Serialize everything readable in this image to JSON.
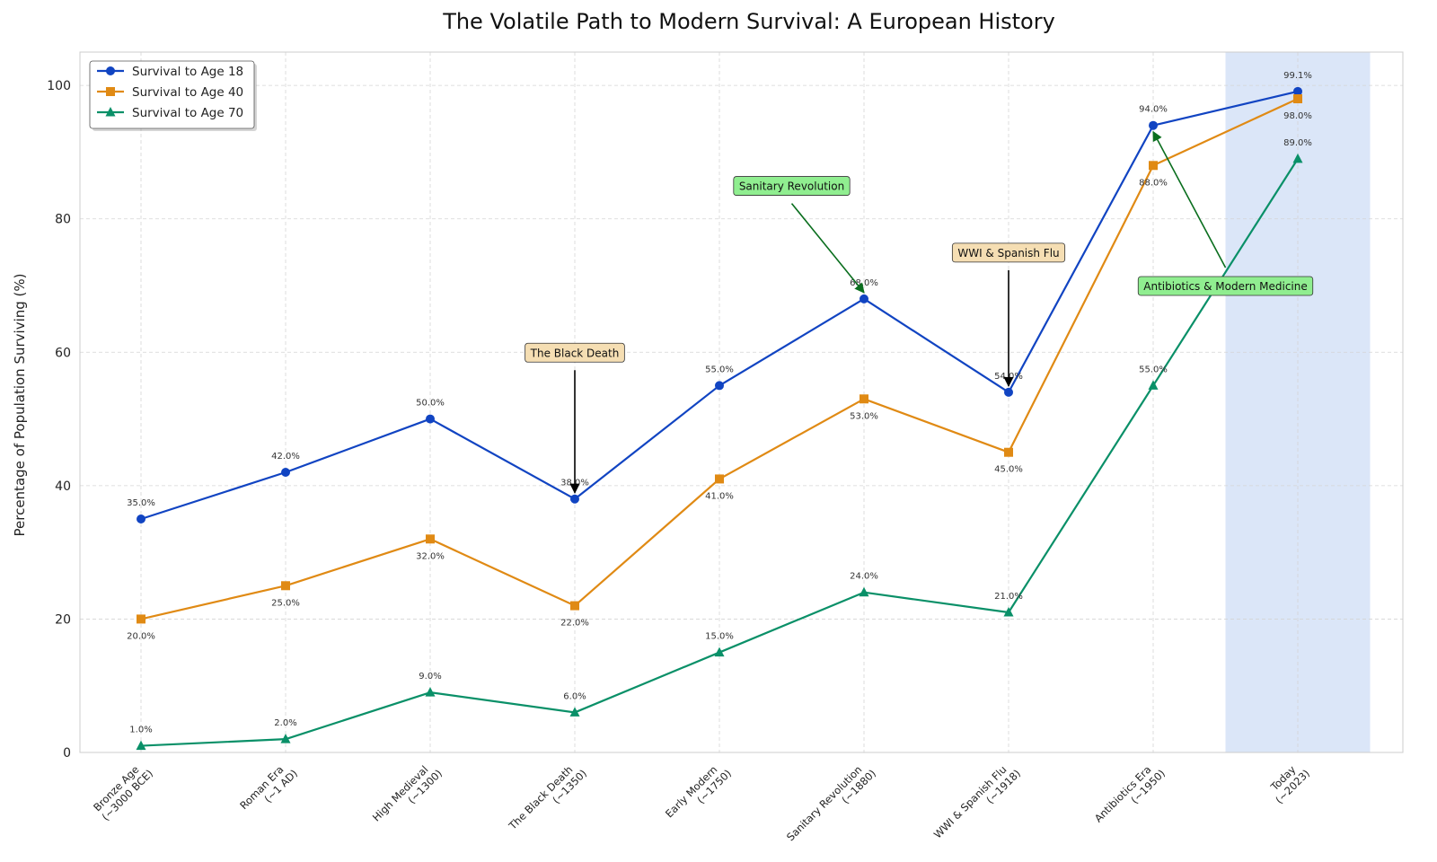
{
  "chart_data": {
    "type": "line",
    "title": "The Volatile Path to Modern Survival: A European History",
    "xlabel": "",
    "ylabel": "Percentage of Population Surviving (%)",
    "ylim": [
      0,
      105
    ],
    "yticks": [
      0,
      20,
      40,
      60,
      80,
      100
    ],
    "grid": true,
    "legend_position": "top-left",
    "categories": [
      [
        "Bronze Age",
        "(~3000 BCE)"
      ],
      [
        "Roman Era",
        "(~1 AD)"
      ],
      [
        "High Medieval",
        "(~1300)"
      ],
      [
        "The Black Death",
        "(~1350)"
      ],
      [
        "Early Modern",
        "(~1750)"
      ],
      [
        "Sanitary Revolution",
        "(~1880)"
      ],
      [
        "WWI & Spanish Flu",
        "(~1918)"
      ],
      [
        "Antibiotics Era",
        "(~1950)"
      ],
      [
        "Today",
        "(~2023)"
      ]
    ],
    "series": [
      {
        "name": "Survival to Age 18",
        "color": "#1144c2",
        "marker": "circle",
        "label_position": "above",
        "values": [
          35,
          42,
          50,
          38,
          55,
          68,
          54,
          94,
          99.1
        ],
        "labels": [
          "35.0%",
          "42.0%",
          "50.0%",
          "38.0%",
          "55.0%",
          "68.0%",
          "54.0%",
          "94.0%",
          "99.1%"
        ]
      },
      {
        "name": "Survival to Age 40",
        "color": "#e08a14",
        "marker": "square",
        "label_position": "below",
        "values": [
          20,
          25,
          32,
          22,
          41,
          53,
          45,
          88,
          98
        ],
        "labels": [
          "20.0%",
          "25.0%",
          "32.0%",
          "22.0%",
          "41.0%",
          "53.0%",
          "45.0%",
          "88.0%",
          "98.0%"
        ]
      },
      {
        "name": "Survival to Age 70",
        "color": "#0a9068",
        "marker": "triangle",
        "label_position": "above",
        "values": [
          1,
          2,
          9,
          6,
          15,
          24,
          21,
          55,
          89
        ],
        "labels": [
          "1.0%",
          "2.0%",
          "9.0%",
          "6.0%",
          "15.0%",
          "24.0%",
          "21.0%",
          "55.0%",
          "89.0%"
        ]
      }
    ],
    "highlight_span": {
      "from_index": 8,
      "color": "#dbe6f8"
    },
    "annotations": [
      {
        "text": "The Black Death",
        "index": 3,
        "target_value": 38,
        "text_value": 60,
        "style": "wheat",
        "arrow_color": "#000000"
      },
      {
        "text": "Sanitary Revolution",
        "index": 5,
        "target_value": 68,
        "text_value": 85,
        "text_index_offset": -0.5,
        "style": "green",
        "arrow_color": "#0a6e1e"
      },
      {
        "text": "WWI & Spanish Flu",
        "index": 6,
        "target_value": 54,
        "text_value": 75,
        "style": "wheat",
        "arrow_color": "#000000"
      },
      {
        "text": "Antibiotics & Modern Medicine",
        "index": 7,
        "target_value": 94,
        "text_value": 70,
        "text_index_offset": 0.5,
        "style": "green",
        "arrow_color": "#0a6e1e"
      }
    ]
  }
}
